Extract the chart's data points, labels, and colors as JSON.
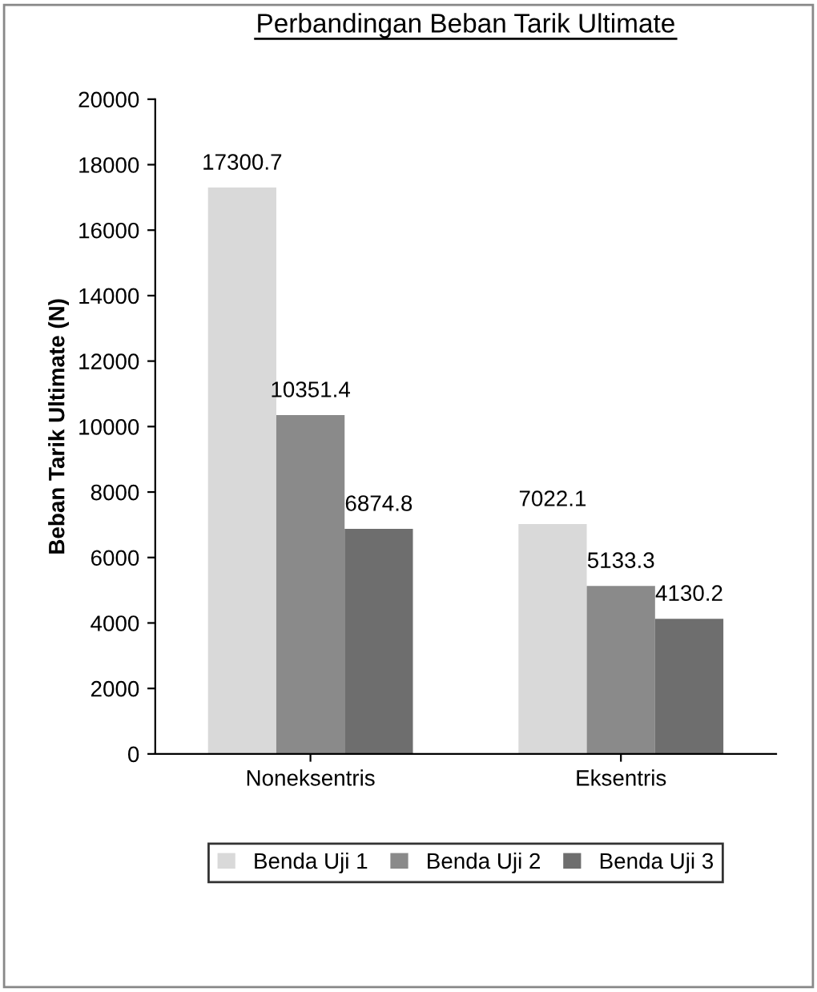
{
  "chart_data": {
    "type": "bar",
    "title": "Perbandingan Beban Tarik Ultimate",
    "ylabel": "Beban Tarik Ultimate (N)",
    "categories": [
      "Noneksentris",
      "Eksentris"
    ],
    "series": [
      {
        "name": "Benda Uji 1",
        "color": "#d9d9d9",
        "values": [
          17300.7,
          7022.1
        ]
      },
      {
        "name": "Benda Uji 2",
        "color": "#8a8a8a",
        "values": [
          10351.4,
          5133.3
        ]
      },
      {
        "name": "Benda Uji 3",
        "color": "#6e6e6e",
        "values": [
          6874.8,
          4130.2
        ]
      }
    ],
    "ylim": [
      0,
      20000
    ],
    "yticks": [
      0,
      2000,
      4000,
      6000,
      8000,
      10000,
      12000,
      14000,
      16000,
      18000,
      20000
    ],
    "grid": false,
    "legend": "bottom",
    "data_labels": true
  }
}
